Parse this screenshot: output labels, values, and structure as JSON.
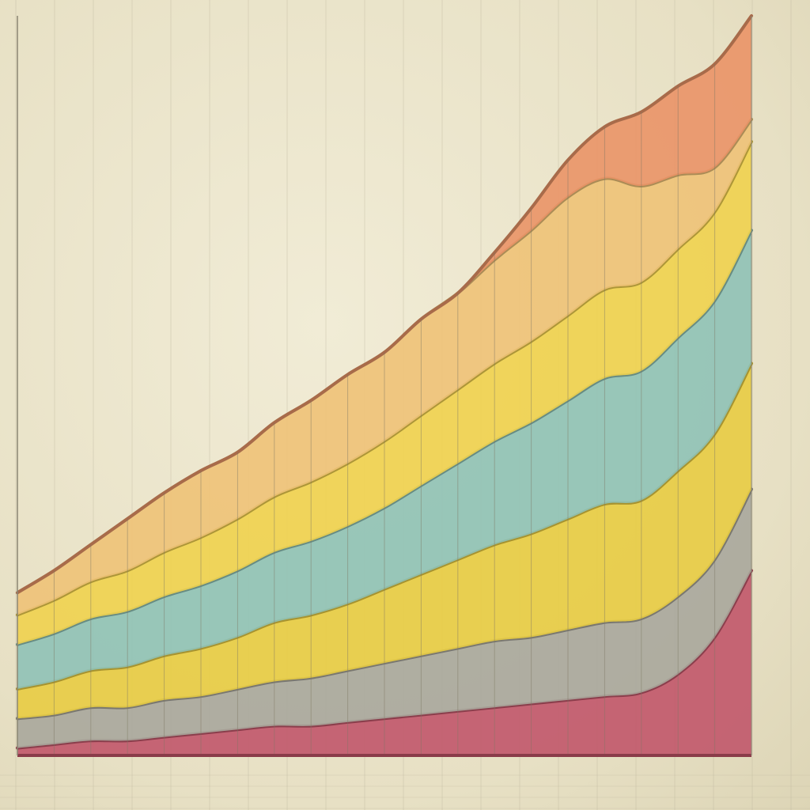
{
  "chart_data": {
    "type": "area",
    "stacked": true,
    "title": "",
    "xlabel": "",
    "ylabel": "",
    "grid": true,
    "legend": "none",
    "x": [
      0,
      1,
      2,
      3,
      4,
      5,
      6,
      7,
      8,
      9,
      10,
      11,
      12,
      13,
      14,
      15,
      16,
      17,
      18,
      19,
      20
    ],
    "ylim": [
      0,
      100
    ],
    "series": [
      {
        "color": "#c1566a",
        "values": [
          1,
          1.5,
          2,
          2,
          2.5,
          3,
          3.5,
          4,
          4,
          4.5,
          5,
          5.5,
          6,
          6.5,
          7,
          7.5,
          8,
          8.5,
          11,
          16,
          25
        ]
      },
      {
        "color": "#a9a79c",
        "values": [
          4,
          4,
          4.5,
          4.5,
          5,
          5,
          5.5,
          6,
          6.5,
          7,
          7.5,
          8,
          8.5,
          9,
          9,
          9.5,
          10,
          10,
          10.5,
          10.5,
          11
        ]
      },
      {
        "color": "#e8cc42",
        "values": [
          4,
          4.5,
          5,
          5.5,
          6,
          6.5,
          7,
          8,
          8.5,
          9,
          10,
          11,
          12,
          13,
          14,
          15,
          16,
          16,
          17,
          17,
          17
        ]
      },
      {
        "color": "#8fc2b6",
        "values": [
          6,
          6.5,
          7,
          7.5,
          8,
          8.5,
          9,
          9.5,
          10,
          10.5,
          11,
          12,
          13,
          14,
          15,
          16,
          17,
          17.5,
          18,
          18,
          18
        ]
      },
      {
        "color": "#f0d14e",
        "values": [
          4,
          4.5,
          5,
          5.5,
          6,
          6.5,
          7,
          7.5,
          8,
          8.5,
          9,
          9.5,
          10,
          10.5,
          11,
          11.5,
          12,
          12,
          12,
          12,
          12
        ]
      },
      {
        "color": "#eec277",
        "values": [
          3,
          4,
          5,
          7,
          8,
          9,
          9,
          10,
          11,
          12,
          12,
          13,
          13,
          14,
          15,
          16,
          15,
          13,
          10,
          6,
          3
        ]
      },
      {
        "color": "#ea9467",
        "values": [
          0,
          0,
          0,
          0,
          0,
          0,
          0,
          0,
          0,
          0,
          0,
          0,
          0,
          1,
          3,
          5,
          7,
          10,
          12,
          14,
          14
        ]
      }
    ]
  }
}
